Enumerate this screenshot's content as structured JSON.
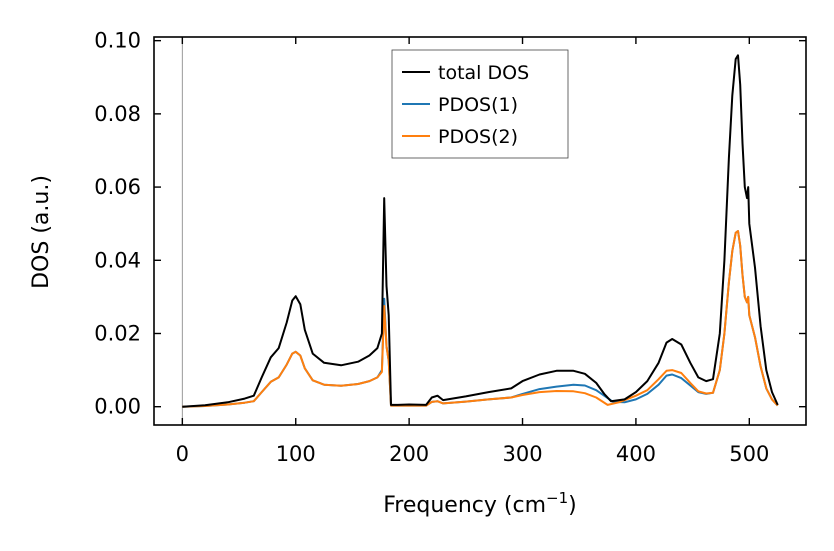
{
  "chart_data": {
    "type": "line",
    "xlabel": "Frequency (cm",
    "xlabel_exponent": "−1",
    "xlabel_suffix": ")",
    "ylabel": "DOS (a.u.)",
    "xlim": [
      -25,
      550
    ],
    "ylim": [
      -0.005,
      0.101
    ],
    "xticks": [
      0,
      100,
      200,
      300,
      400,
      500
    ],
    "xtick_labels": [
      "0",
      "100",
      "200",
      "300",
      "400",
      "500"
    ],
    "yticks": [
      0.0,
      0.02,
      0.04,
      0.06,
      0.08,
      0.1
    ],
    "ytick_labels": [
      "0.00",
      "0.02",
      "0.04",
      "0.06",
      "0.08",
      "0.10"
    ],
    "grid": false,
    "legend_position": "top-center",
    "vertical_reference_line_x": 0,
    "series": [
      {
        "name": "total DOS",
        "color": "#000000",
        "points": [
          [
            0,
            0
          ],
          [
            20,
            0.0004
          ],
          [
            40,
            0.0012
          ],
          [
            55,
            0.0022
          ],
          [
            63,
            0.003
          ],
          [
            70,
            0.008
          ],
          [
            78,
            0.0135
          ],
          [
            85,
            0.016
          ],
          [
            92,
            0.023
          ],
          [
            97,
            0.029
          ],
          [
            100,
            0.0302
          ],
          [
            104,
            0.028
          ],
          [
            108,
            0.021
          ],
          [
            115,
            0.0145
          ],
          [
            125,
            0.012
          ],
          [
            140,
            0.0113
          ],
          [
            155,
            0.0123
          ],
          [
            165,
            0.014
          ],
          [
            172,
            0.016
          ],
          [
            176,
            0.02
          ],
          [
            178,
            0.057
          ],
          [
            180,
            0.033
          ],
          [
            182,
            0.025
          ],
          [
            184,
            0.0005
          ],
          [
            190,
            0.0005
          ],
          [
            200,
            0.0006
          ],
          [
            215,
            0.0005
          ],
          [
            220,
            0.0025
          ],
          [
            225,
            0.003
          ],
          [
            230,
            0.0018
          ],
          [
            250,
            0.0028
          ],
          [
            270,
            0.004
          ],
          [
            290,
            0.005
          ],
          [
            300,
            0.007
          ],
          [
            315,
            0.0088
          ],
          [
            330,
            0.0098
          ],
          [
            345,
            0.0098
          ],
          [
            355,
            0.009
          ],
          [
            365,
            0.0065
          ],
          [
            372,
            0.0035
          ],
          [
            378,
            0.0015
          ],
          [
            390,
            0.002
          ],
          [
            400,
            0.004
          ],
          [
            410,
            0.007
          ],
          [
            420,
            0.012
          ],
          [
            427,
            0.0175
          ],
          [
            432,
            0.0185
          ],
          [
            440,
            0.017
          ],
          [
            448,
            0.012
          ],
          [
            455,
            0.008
          ],
          [
            462,
            0.007
          ],
          [
            468,
            0.0075
          ],
          [
            474,
            0.02
          ],
          [
            478,
            0.04
          ],
          [
            482,
            0.068
          ],
          [
            485,
            0.085
          ],
          [
            488,
            0.095
          ],
          [
            490,
            0.096
          ],
          [
            492,
            0.088
          ],
          [
            494,
            0.072
          ],
          [
            496,
            0.06
          ],
          [
            498,
            0.057
          ],
          [
            499,
            0.06
          ],
          [
            500,
            0.05
          ],
          [
            505,
            0.038
          ],
          [
            510,
            0.022
          ],
          [
            515,
            0.01
          ],
          [
            520,
            0.004
          ],
          [
            525,
            0.0005
          ]
        ]
      },
      {
        "name": "PDOS(1)",
        "color": "#1f77b4",
        "points": [
          [
            0,
            0
          ],
          [
            20,
            0.0002
          ],
          [
            40,
            0.0006
          ],
          [
            55,
            0.0011
          ],
          [
            63,
            0.0015
          ],
          [
            70,
            0.004
          ],
          [
            78,
            0.0068
          ],
          [
            85,
            0.008
          ],
          [
            92,
            0.0115
          ],
          [
            97,
            0.0145
          ],
          [
            100,
            0.015
          ],
          [
            104,
            0.014
          ],
          [
            108,
            0.0105
          ],
          [
            115,
            0.0072
          ],
          [
            125,
            0.006
          ],
          [
            140,
            0.0057
          ],
          [
            155,
            0.0062
          ],
          [
            165,
            0.007
          ],
          [
            172,
            0.008
          ],
          [
            176,
            0.01
          ],
          [
            178,
            0.0295
          ],
          [
            180,
            0.0165
          ],
          [
            182,
            0.0125
          ],
          [
            184,
            0.0003
          ],
          [
            200,
            0.0003
          ],
          [
            215,
            0.0003
          ],
          [
            220,
            0.0013
          ],
          [
            225,
            0.0015
          ],
          [
            230,
            0.0009
          ],
          [
            250,
            0.0014
          ],
          [
            270,
            0.002
          ],
          [
            290,
            0.0025
          ],
          [
            300,
            0.0035
          ],
          [
            315,
            0.0048
          ],
          [
            330,
            0.0055
          ],
          [
            345,
            0.006
          ],
          [
            355,
            0.0058
          ],
          [
            365,
            0.0045
          ],
          [
            372,
            0.003
          ],
          [
            380,
            0.0013
          ],
          [
            390,
            0.0012
          ],
          [
            400,
            0.002
          ],
          [
            410,
            0.0035
          ],
          [
            420,
            0.006
          ],
          [
            427,
            0.0085
          ],
          [
            432,
            0.0088
          ],
          [
            440,
            0.0078
          ],
          [
            448,
            0.0058
          ],
          [
            455,
            0.004
          ],
          [
            462,
            0.0035
          ],
          [
            468,
            0.0038
          ],
          [
            474,
            0.01
          ],
          [
            478,
            0.02
          ],
          [
            482,
            0.034
          ],
          [
            485,
            0.0425
          ],
          [
            488,
            0.0475
          ],
          [
            490,
            0.048
          ],
          [
            492,
            0.044
          ],
          [
            494,
            0.036
          ],
          [
            496,
            0.03
          ],
          [
            498,
            0.0285
          ],
          [
            499,
            0.03
          ],
          [
            500,
            0.025
          ],
          [
            505,
            0.019
          ],
          [
            510,
            0.011
          ],
          [
            515,
            0.005
          ],
          [
            520,
            0.002
          ],
          [
            525,
            0.0003
          ]
        ]
      },
      {
        "name": "PDOS(2)",
        "color": "#ff7f0e",
        "points": [
          [
            0,
            0
          ],
          [
            20,
            0.0002
          ],
          [
            40,
            0.0006
          ],
          [
            55,
            0.0011
          ],
          [
            63,
            0.0015
          ],
          [
            70,
            0.004
          ],
          [
            78,
            0.0068
          ],
          [
            85,
            0.008
          ],
          [
            92,
            0.0115
          ],
          [
            97,
            0.0145
          ],
          [
            100,
            0.015
          ],
          [
            104,
            0.014
          ],
          [
            108,
            0.0105
          ],
          [
            115,
            0.0072
          ],
          [
            125,
            0.006
          ],
          [
            140,
            0.0057
          ],
          [
            155,
            0.0062
          ],
          [
            165,
            0.007
          ],
          [
            172,
            0.008
          ],
          [
            176,
            0.0095
          ],
          [
            178,
            0.0275
          ],
          [
            180,
            0.0165
          ],
          [
            182,
            0.0125
          ],
          [
            184,
            0.0003
          ],
          [
            200,
            0.0003
          ],
          [
            215,
            0.0003
          ],
          [
            220,
            0.0013
          ],
          [
            225,
            0.0015
          ],
          [
            230,
            0.0009
          ],
          [
            250,
            0.0014
          ],
          [
            270,
            0.002
          ],
          [
            290,
            0.0025
          ],
          [
            300,
            0.0032
          ],
          [
            315,
            0.004
          ],
          [
            330,
            0.0043
          ],
          [
            345,
            0.0042
          ],
          [
            355,
            0.0037
          ],
          [
            365,
            0.0025
          ],
          [
            375,
            0.0005
          ],
          [
            385,
            0.0012
          ],
          [
            400,
            0.003
          ],
          [
            410,
            0.0045
          ],
          [
            420,
            0.0075
          ],
          [
            427,
            0.0098
          ],
          [
            432,
            0.01
          ],
          [
            440,
            0.0092
          ],
          [
            448,
            0.0065
          ],
          [
            455,
            0.0042
          ],
          [
            462,
            0.0036
          ],
          [
            468,
            0.0038
          ],
          [
            474,
            0.01
          ],
          [
            478,
            0.02
          ],
          [
            482,
            0.034
          ],
          [
            485,
            0.0425
          ],
          [
            488,
            0.0475
          ],
          [
            490,
            0.048
          ],
          [
            492,
            0.044
          ],
          [
            494,
            0.036
          ],
          [
            496,
            0.03
          ],
          [
            498,
            0.0285
          ],
          [
            499,
            0.03
          ],
          [
            500,
            0.025
          ],
          [
            505,
            0.019
          ],
          [
            510,
            0.011
          ],
          [
            515,
            0.005
          ],
          [
            520,
            0.002
          ],
          [
            525,
            0.0003
          ]
        ]
      }
    ]
  }
}
